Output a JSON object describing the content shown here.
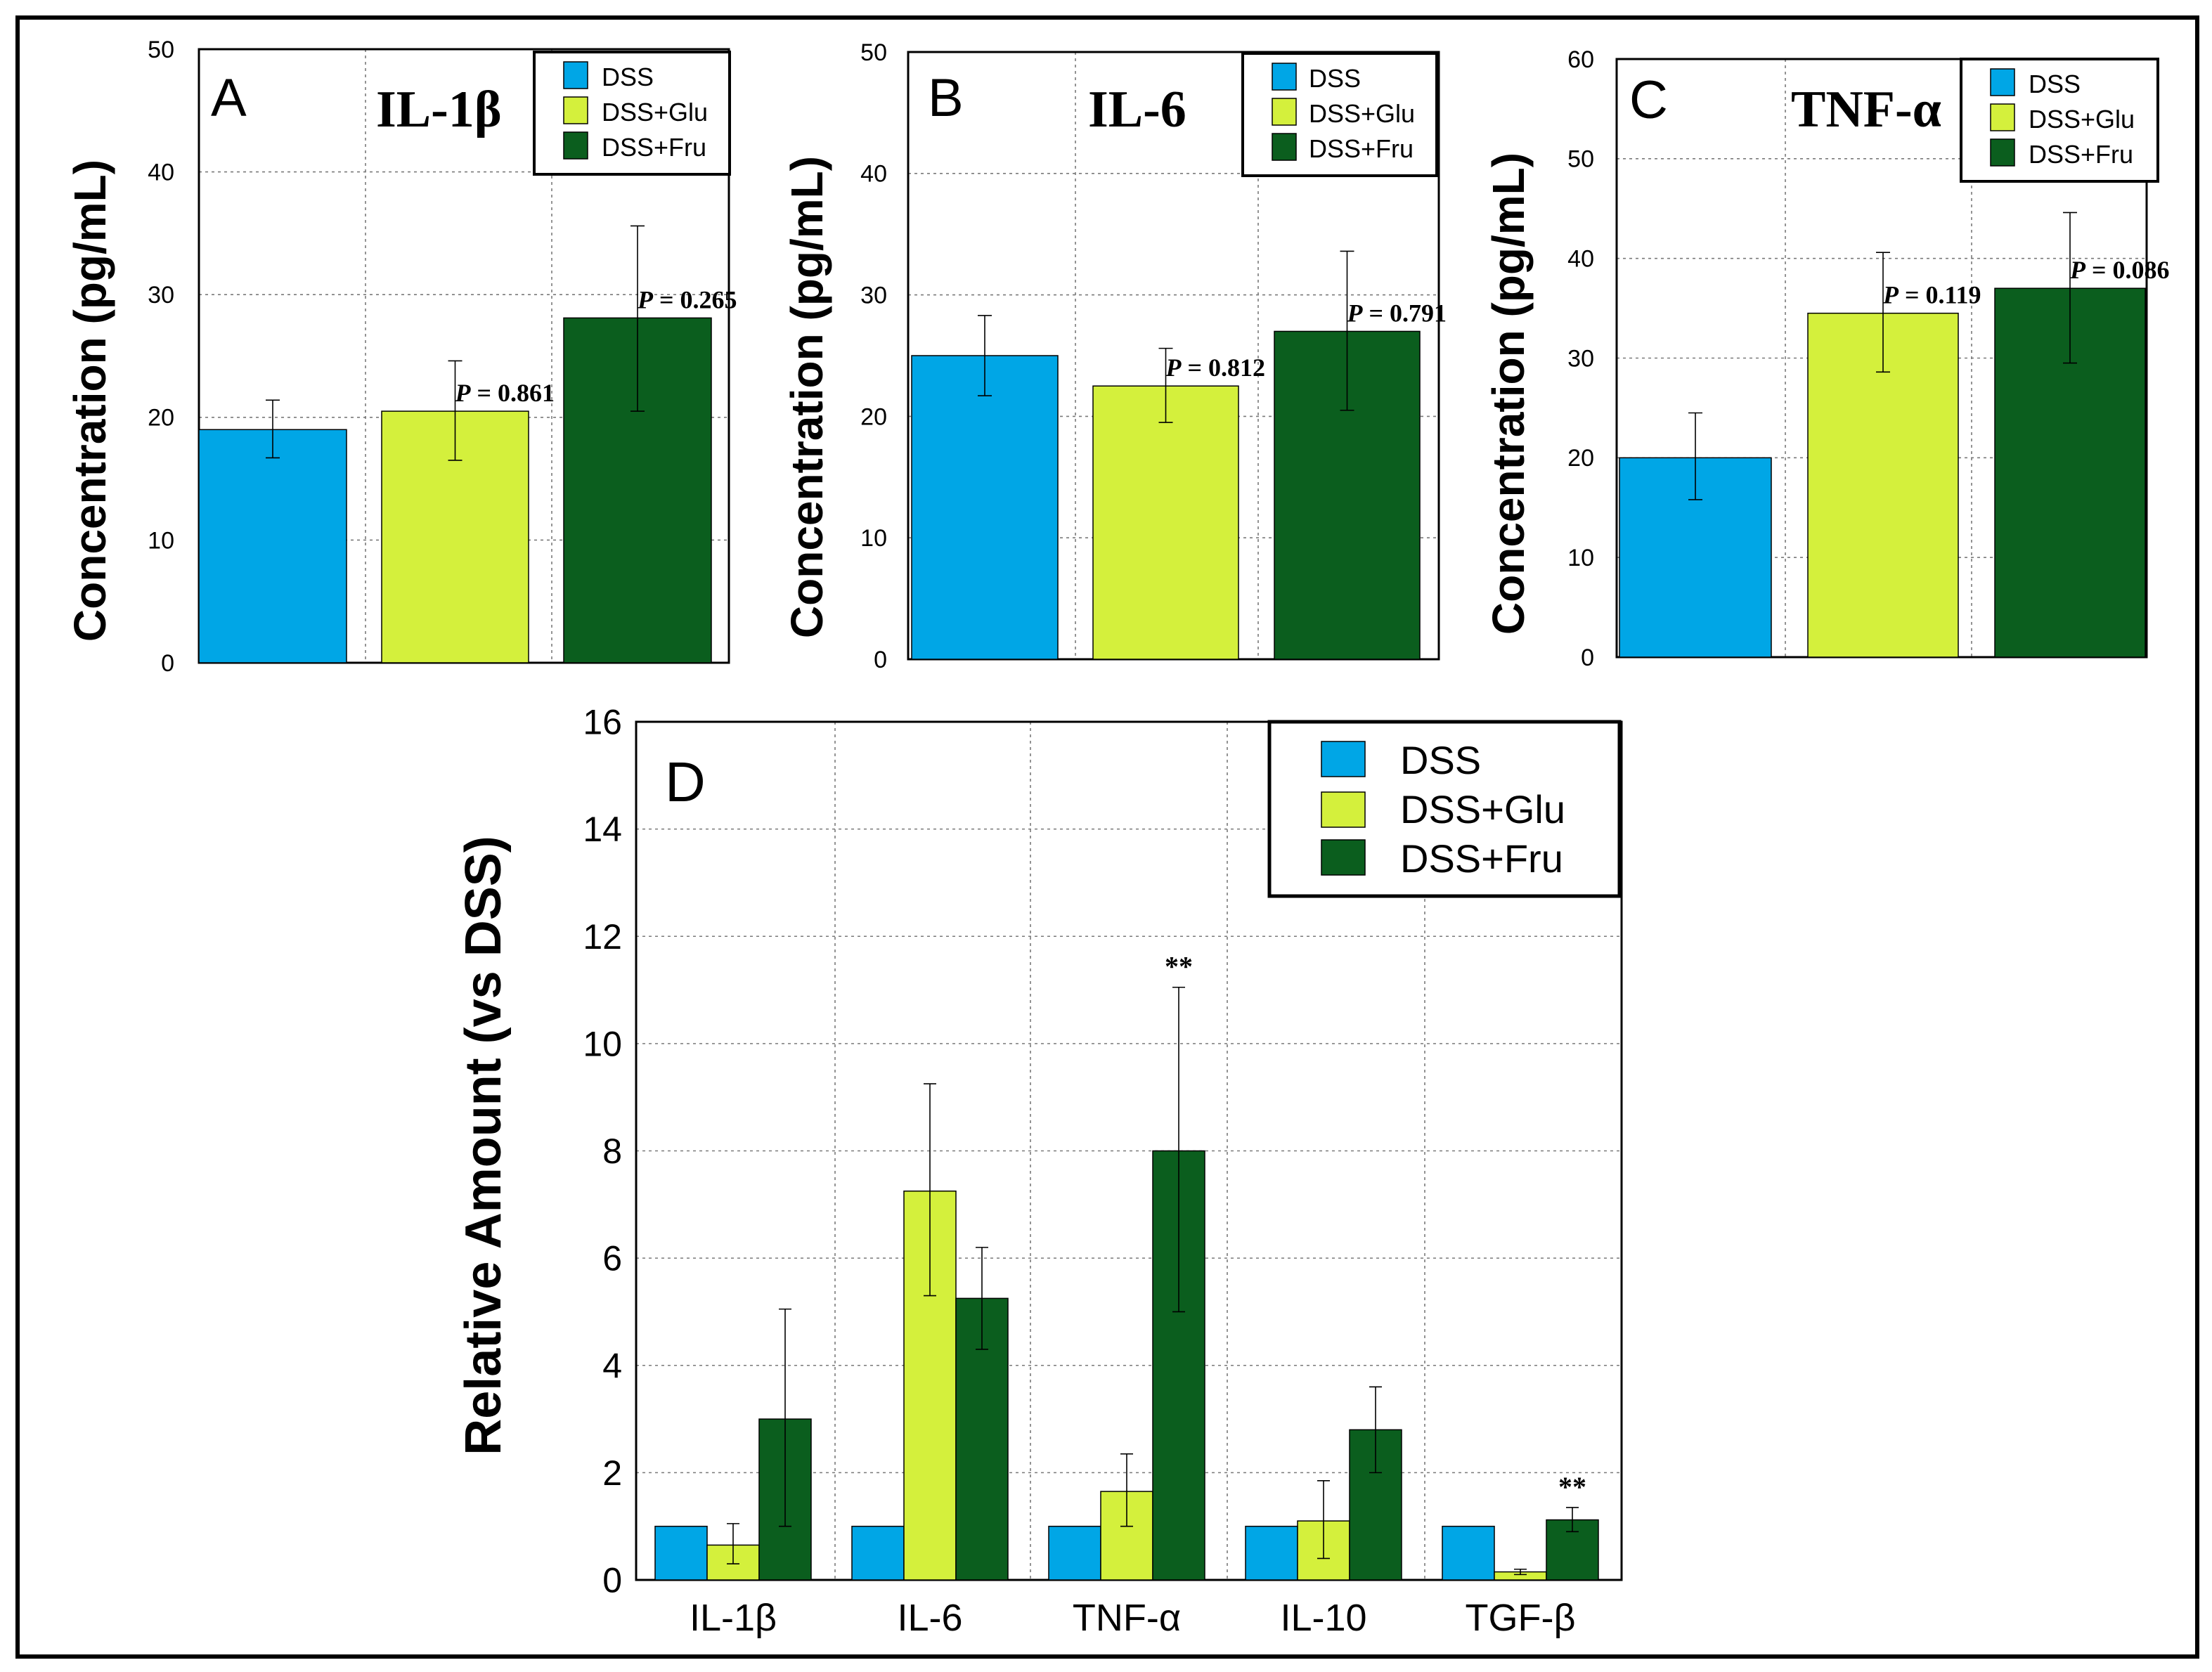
{
  "colors": {
    "dss": "#00a6e6",
    "glu": "#d4f03c",
    "fru": "#0b5e1e",
    "grid": "#7a7a7a",
    "axis": "#000000"
  },
  "legend_labels": [
    "DSS",
    "DSS+Glu",
    "DSS+Fru"
  ],
  "chart_data": [
    {
      "type": "bar",
      "panel": "A",
      "title": "IL-1β",
      "ylabel": "Concentration (pg/mL)",
      "ylim": [
        0,
        50
      ],
      "yticks": [
        "0",
        "10",
        "20",
        "30",
        "40",
        "50"
      ],
      "series": [
        {
          "name": "DSS",
          "value": 19,
          "err": [
            16.7,
            21.4
          ]
        },
        {
          "name": "DSS+Glu",
          "value": 20.5,
          "err": [
            16.5,
            24.6
          ]
        },
        {
          "name": "DSS+Fru",
          "value": 28.1,
          "err": [
            20.5,
            35.6
          ]
        }
      ],
      "annotations": [
        {
          "series": 1,
          "p_label": "P",
          "p_value": " = 0.861"
        },
        {
          "series": 2,
          "p_label": "P",
          "p_value": " = 0.265"
        }
      ],
      "legend": "top-right"
    },
    {
      "type": "bar",
      "panel": "B",
      "title": "IL-6",
      "ylabel": "Concentration (pg/mL)",
      "ylim": [
        0,
        50
      ],
      "yticks": [
        "0",
        "10",
        "20",
        "30",
        "40",
        "50"
      ],
      "series": [
        {
          "name": "DSS",
          "value": 25,
          "err": [
            21.7,
            28.3
          ]
        },
        {
          "name": "DSS+Glu",
          "value": 22.5,
          "err": [
            19.5,
            25.6
          ]
        },
        {
          "name": "DSS+Fru",
          "value": 27,
          "err": [
            20.5,
            33.6
          ]
        }
      ],
      "annotations": [
        {
          "series": 1,
          "p_label": "P",
          "p_value": " = 0.812"
        },
        {
          "series": 2,
          "p_label": "P",
          "p_value": " = 0.791"
        }
      ],
      "legend": "top-right"
    },
    {
      "type": "bar",
      "panel": "C",
      "title": "TNF-α",
      "ylabel": "Concentration (pg/mL)",
      "ylim": [
        0,
        60
      ],
      "yticks": [
        "0",
        "10",
        "20",
        "30",
        "40",
        "50",
        "60"
      ],
      "series": [
        {
          "name": "DSS",
          "value": 20,
          "err": [
            15.8,
            24.5
          ]
        },
        {
          "name": "DSS+Glu",
          "value": 34.5,
          "err": [
            28.6,
            40.6
          ]
        },
        {
          "name": "DSS+Fru",
          "value": 37,
          "err": [
            29.5,
            44.6
          ]
        }
      ],
      "annotations": [
        {
          "series": 1,
          "p_label": "P",
          "p_value": " = 0.119"
        },
        {
          "series": 2,
          "p_label": "P",
          "p_value": " = 0.086"
        }
      ],
      "legend": "top-right"
    },
    {
      "type": "bar",
      "panel": "D",
      "title": "",
      "ylabel": "Relative Amount (vs DSS)",
      "ylim": [
        0,
        16
      ],
      "yticks": [
        "0",
        "2",
        "4",
        "6",
        "8",
        "10",
        "12",
        "14",
        "16"
      ],
      "categories": [
        "IL-1β",
        "IL-6",
        "TNF-α",
        "IL-10",
        "TGF-β"
      ],
      "series": [
        {
          "name": "DSS",
          "values": [
            1,
            1,
            1,
            1,
            1
          ],
          "err": [
            null,
            null,
            null,
            null,
            null
          ]
        },
        {
          "name": "DSS+Glu",
          "values": [
            0.65,
            7.25,
            1.65,
            1.1,
            0.15
          ],
          "err": [
            [
              0.3,
              1.05
            ],
            [
              5.3,
              9.25
            ],
            [
              1.0,
              2.35
            ],
            [
              0.4,
              1.85
            ],
            [
              0.1,
              0.2
            ]
          ]
        },
        {
          "name": "DSS+Fru",
          "values": [
            3.0,
            5.25,
            8.0,
            2.8,
            1.12
          ],
          "err": [
            [
              1.0,
              5.05
            ],
            [
              4.3,
              6.2
            ],
            [
              5.0,
              11.05
            ],
            [
              2.0,
              3.6
            ],
            [
              0.9,
              1.35
            ]
          ]
        }
      ],
      "annotations": [
        {
          "category": 2,
          "series": 2,
          "text": "**"
        },
        {
          "category": 4,
          "series": 2,
          "text": "**"
        }
      ],
      "legend": "top-right"
    }
  ]
}
